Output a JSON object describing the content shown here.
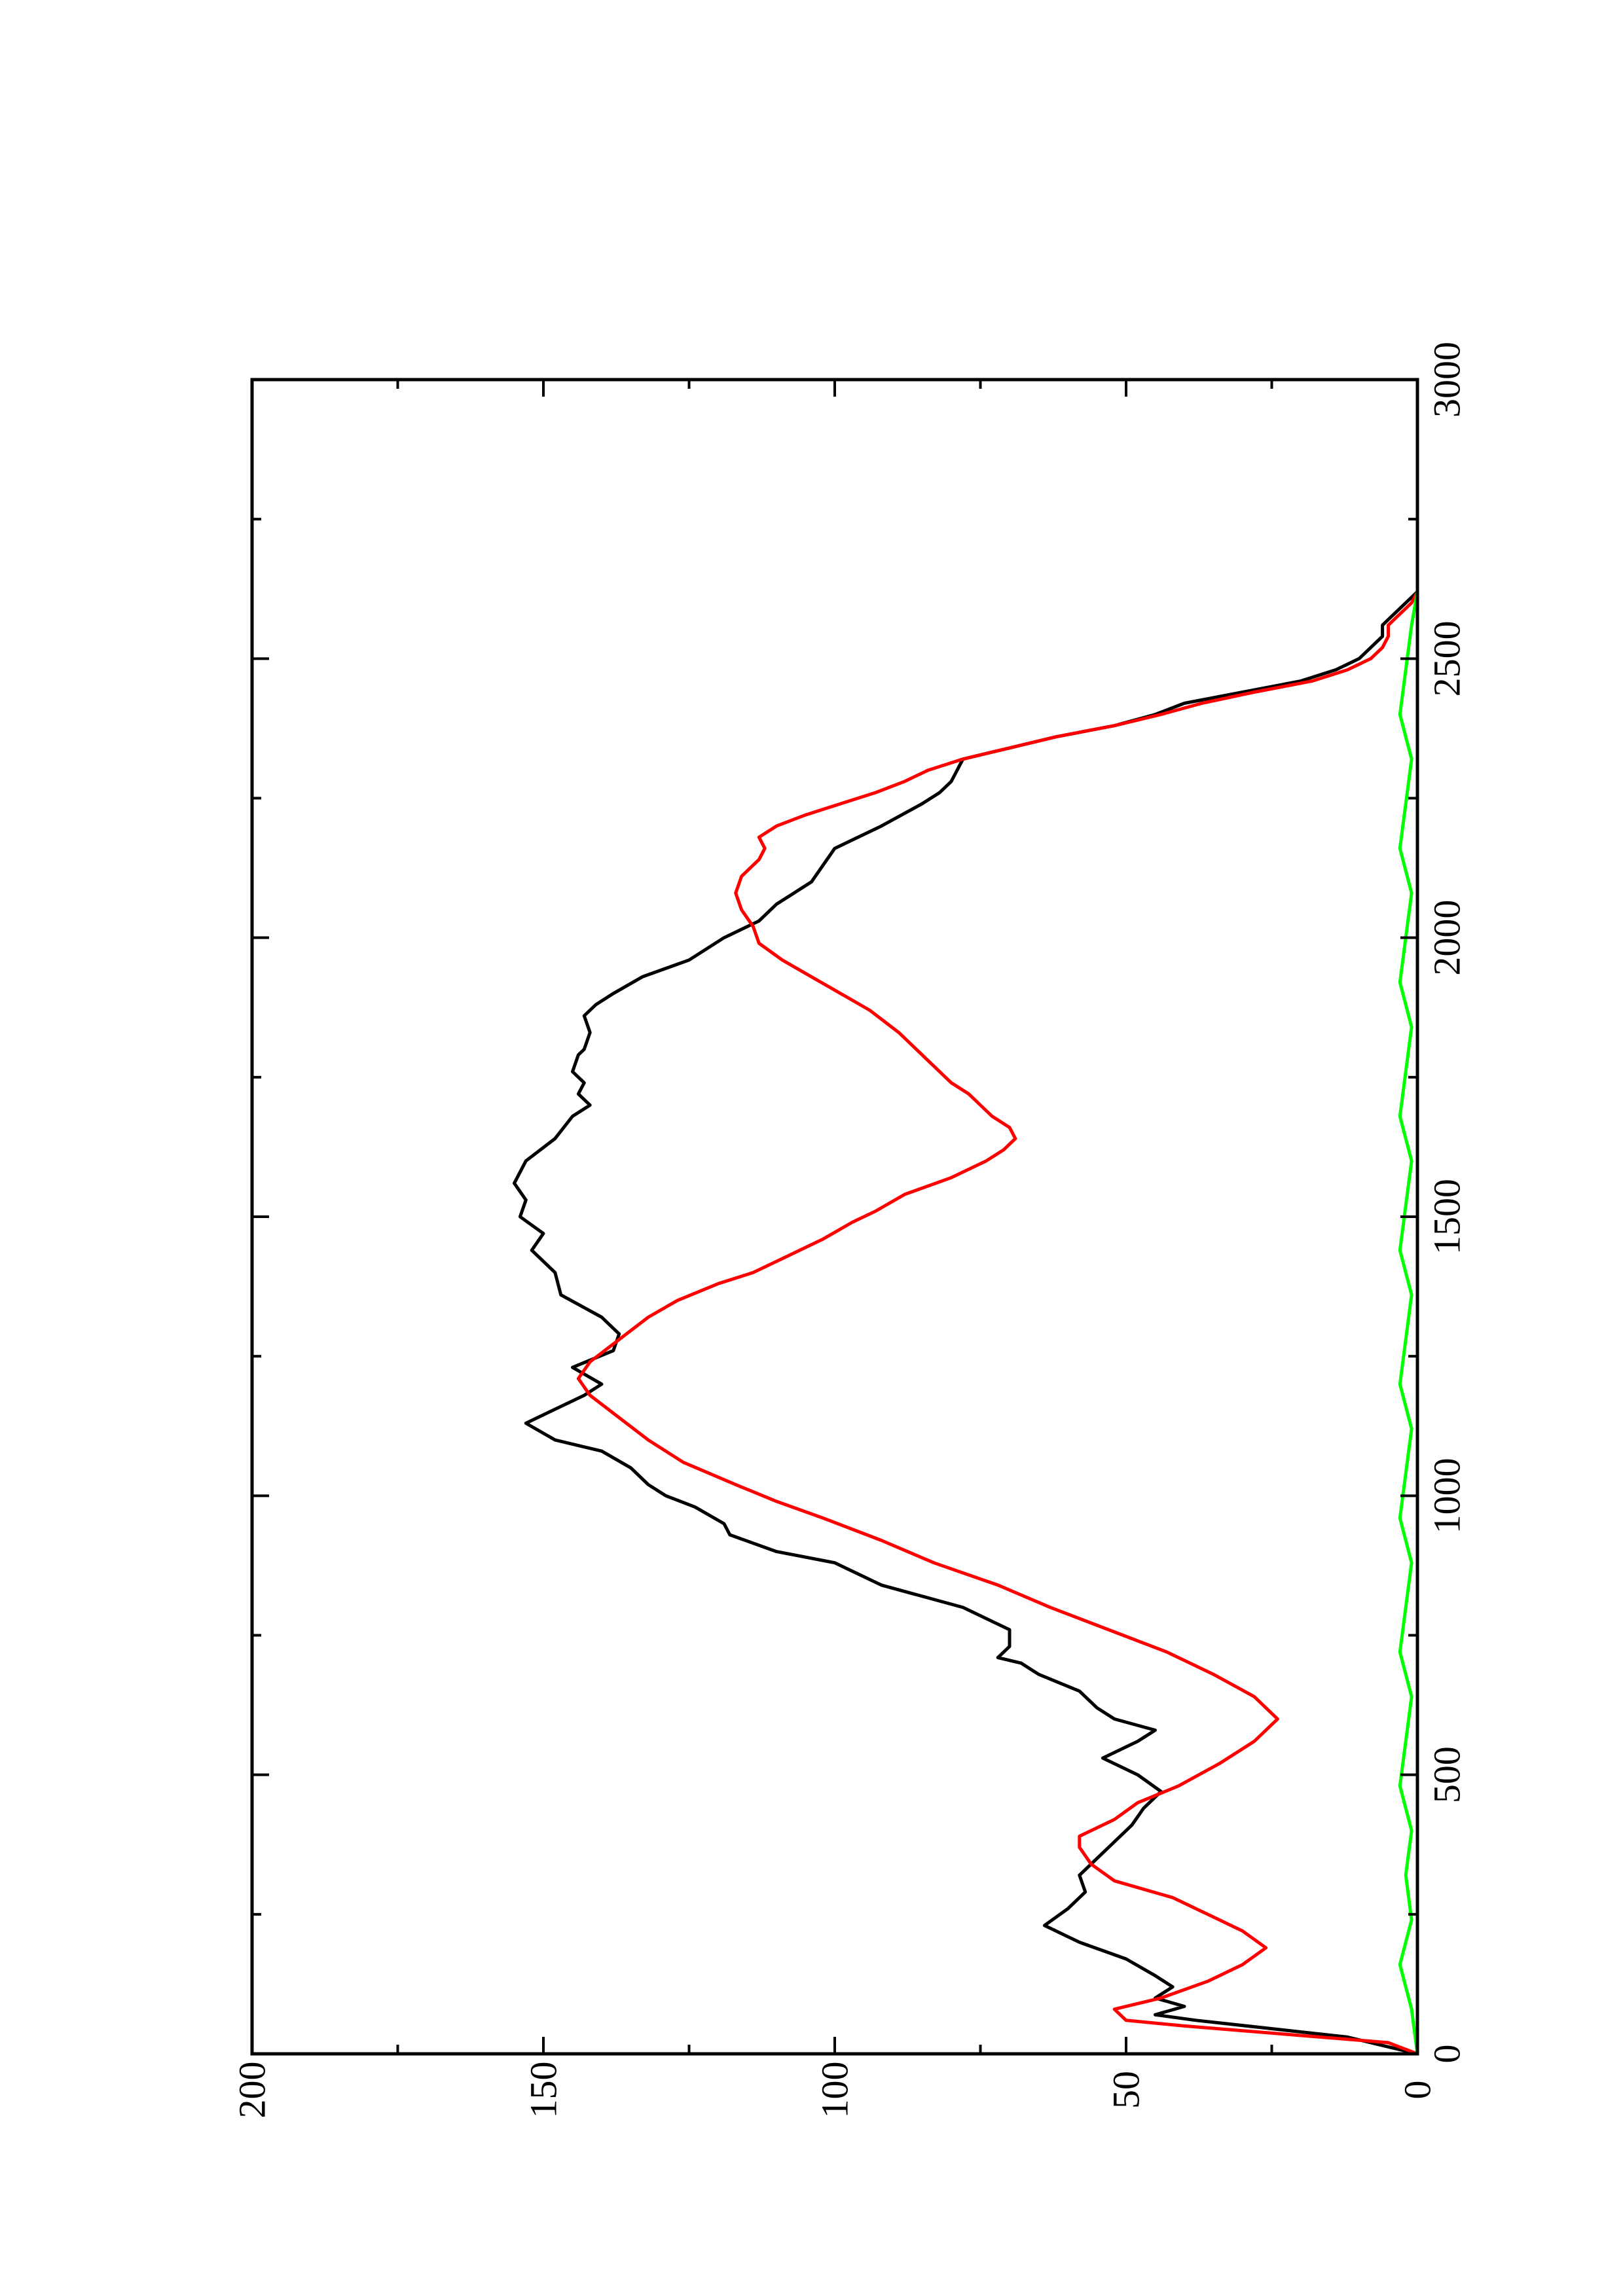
{
  "chart_data": {
    "type": "line",
    "orientation": "rotated-90-ccw",
    "x_axis": {
      "range": [
        0,
        3000
      ],
      "ticks": [
        0,
        500,
        1000,
        1500,
        2000,
        2500,
        3000
      ],
      "minor_ticks": [
        250,
        750,
        1250,
        1750,
        2250,
        2750
      ],
      "label": ""
    },
    "y_axis": {
      "range": [
        0,
        200
      ],
      "ticks": [
        0,
        50,
        100,
        150,
        200
      ],
      "minor_ticks": [
        25,
        75,
        125,
        175
      ],
      "label": ""
    },
    "title": "",
    "grid": false,
    "legend": "none",
    "series": [
      {
        "color": "#000000",
        "points": [
          [
            0,
            0
          ],
          [
            30,
            12
          ],
          [
            60,
            38
          ],
          [
            70,
            45
          ],
          [
            85,
            40
          ],
          [
            100,
            45
          ],
          [
            120,
            42
          ],
          [
            140,
            45
          ],
          [
            170,
            50
          ],
          [
            200,
            58
          ],
          [
            230,
            64
          ],
          [
            260,
            60
          ],
          [
            290,
            57
          ],
          [
            320,
            58
          ],
          [
            350,
            55
          ],
          [
            380,
            52
          ],
          [
            410,
            49
          ],
          [
            440,
            47
          ],
          [
            470,
            44
          ],
          [
            500,
            48
          ],
          [
            530,
            54
          ],
          [
            560,
            48
          ],
          [
            580,
            45
          ],
          [
            600,
            52
          ],
          [
            620,
            55
          ],
          [
            650,
            58
          ],
          [
            680,
            65
          ],
          [
            700,
            68
          ],
          [
            710,
            72
          ],
          [
            730,
            70
          ],
          [
            760,
            70
          ],
          [
            800,
            78
          ],
          [
            840,
            92
          ],
          [
            880,
            100
          ],
          [
            900,
            110
          ],
          [
            930,
            118
          ],
          [
            950,
            119
          ],
          [
            980,
            124
          ],
          [
            1000,
            129
          ],
          [
            1020,
            132
          ],
          [
            1050,
            135
          ],
          [
            1080,
            140
          ],
          [
            1100,
            148
          ],
          [
            1130,
            153
          ],
          [
            1150,
            149
          ],
          [
            1180,
            143
          ],
          [
            1200,
            140
          ],
          [
            1230,
            145
          ],
          [
            1260,
            138
          ],
          [
            1290,
            137
          ],
          [
            1320,
            140
          ],
          [
            1360,
            147
          ],
          [
            1400,
            148
          ],
          [
            1440,
            152
          ],
          [
            1470,
            150
          ],
          [
            1500,
            154
          ],
          [
            1530,
            153
          ],
          [
            1560,
            155
          ],
          [
            1600,
            153
          ],
          [
            1640,
            148
          ],
          [
            1680,
            145
          ],
          [
            1700,
            142
          ],
          [
            1720,
            144
          ],
          [
            1740,
            143
          ],
          [
            1760,
            145
          ],
          [
            1790,
            144
          ],
          [
            1800,
            143
          ],
          [
            1830,
            142
          ],
          [
            1860,
            143
          ],
          [
            1880,
            141
          ],
          [
            1900,
            138
          ],
          [
            1930,
            133
          ],
          [
            1960,
            125
          ],
          [
            2000,
            119
          ],
          [
            2030,
            113
          ],
          [
            2060,
            110
          ],
          [
            2080,
            107
          ],
          [
            2100,
            104
          ],
          [
            2130,
            102
          ],
          [
            2160,
            100
          ],
          [
            2200,
            92
          ],
          [
            2240,
            85
          ],
          [
            2260,
            82
          ],
          [
            2280,
            80
          ],
          [
            2300,
            79
          ],
          [
            2320,
            78
          ],
          [
            2340,
            70
          ],
          [
            2360,
            62
          ],
          [
            2380,
            52
          ],
          [
            2400,
            45
          ],
          [
            2420,
            40
          ],
          [
            2440,
            30
          ],
          [
            2460,
            20
          ],
          [
            2480,
            14
          ],
          [
            2500,
            10
          ],
          [
            2520,
            8
          ],
          [
            2540,
            6
          ],
          [
            2560,
            6
          ],
          [
            2580,
            4
          ],
          [
            2600,
            2
          ],
          [
            2620,
            0
          ]
        ]
      },
      {
        "color": "#ff0000",
        "points": [
          [
            0,
            0
          ],
          [
            20,
            5
          ],
          [
            50,
            40
          ],
          [
            60,
            50
          ],
          [
            80,
            52
          ],
          [
            100,
            44
          ],
          [
            130,
            36
          ],
          [
            160,
            30
          ],
          [
            190,
            26
          ],
          [
            220,
            30
          ],
          [
            250,
            36
          ],
          [
            280,
            42
          ],
          [
            310,
            52
          ],
          [
            340,
            56
          ],
          [
            370,
            58
          ],
          [
            390,
            58
          ],
          [
            420,
            52
          ],
          [
            450,
            48
          ],
          [
            480,
            41
          ],
          [
            520,
            34
          ],
          [
            560,
            28
          ],
          [
            600,
            24
          ],
          [
            640,
            28
          ],
          [
            680,
            35
          ],
          [
            720,
            43
          ],
          [
            760,
            53
          ],
          [
            800,
            63
          ],
          [
            840,
            72
          ],
          [
            880,
            83
          ],
          [
            920,
            92
          ],
          [
            960,
            102
          ],
          [
            990,
            110
          ],
          [
            1020,
            117
          ],
          [
            1060,
            126
          ],
          [
            1100,
            132
          ],
          [
            1140,
            137
          ],
          [
            1180,
            142
          ],
          [
            1210,
            144
          ],
          [
            1240,
            142
          ],
          [
            1280,
            137
          ],
          [
            1320,
            132
          ],
          [
            1350,
            127
          ],
          [
            1380,
            120
          ],
          [
            1400,
            114
          ],
          [
            1430,
            108
          ],
          [
            1460,
            102
          ],
          [
            1490,
            97
          ],
          [
            1510,
            93
          ],
          [
            1540,
            88
          ],
          [
            1570,
            80
          ],
          [
            1600,
            74
          ],
          [
            1620,
            71
          ],
          [
            1640,
            69
          ],
          [
            1660,
            70
          ],
          [
            1680,
            73
          ],
          [
            1700,
            75
          ],
          [
            1720,
            77
          ],
          [
            1740,
            80
          ],
          [
            1760,
            82
          ],
          [
            1780,
            84
          ],
          [
            1800,
            86
          ],
          [
            1830,
            89
          ],
          [
            1870,
            94
          ],
          [
            1900,
            99
          ],
          [
            1930,
            104
          ],
          [
            1960,
            109
          ],
          [
            1990,
            113
          ],
          [
            2020,
            114
          ],
          [
            2050,
            116
          ],
          [
            2080,
            117
          ],
          [
            2110,
            116
          ],
          [
            2140,
            113
          ],
          [
            2160,
            112
          ],
          [
            2180,
            113
          ],
          [
            2200,
            110
          ],
          [
            2220,
            105
          ],
          [
            2240,
            99
          ],
          [
            2260,
            93
          ],
          [
            2280,
            88
          ],
          [
            2300,
            84
          ],
          [
            2320,
            78
          ],
          [
            2340,
            70
          ],
          [
            2360,
            62
          ],
          [
            2380,
            52
          ],
          [
            2400,
            44
          ],
          [
            2420,
            37
          ],
          [
            2440,
            28
          ],
          [
            2460,
            18
          ],
          [
            2480,
            12
          ],
          [
            2500,
            8
          ],
          [
            2520,
            6
          ],
          [
            2540,
            5
          ],
          [
            2560,
            5
          ],
          [
            2580,
            3
          ],
          [
            2600,
            1
          ],
          [
            2620,
            0
          ]
        ]
      },
      {
        "color": "#00ff00",
        "points": [
          [
            0,
            0
          ],
          [
            80,
            1
          ],
          [
            160,
            3
          ],
          [
            240,
            1
          ],
          [
            320,
            2
          ],
          [
            400,
            1
          ],
          [
            480,
            3
          ],
          [
            560,
            2
          ],
          [
            640,
            1
          ],
          [
            720,
            3
          ],
          [
            800,
            2
          ],
          [
            880,
            1
          ],
          [
            960,
            3
          ],
          [
            1040,
            2
          ],
          [
            1120,
            1
          ],
          [
            1200,
            3
          ],
          [
            1280,
            2
          ],
          [
            1360,
            1
          ],
          [
            1440,
            3
          ],
          [
            1520,
            2
          ],
          [
            1600,
            1
          ],
          [
            1680,
            3
          ],
          [
            1760,
            2
          ],
          [
            1840,
            1
          ],
          [
            1920,
            3
          ],
          [
            2000,
            2
          ],
          [
            2080,
            1
          ],
          [
            2160,
            3
          ],
          [
            2240,
            2
          ],
          [
            2320,
            1
          ],
          [
            2400,
            3
          ],
          [
            2480,
            2
          ],
          [
            2560,
            1
          ],
          [
            2620,
            0
          ]
        ]
      }
    ]
  }
}
